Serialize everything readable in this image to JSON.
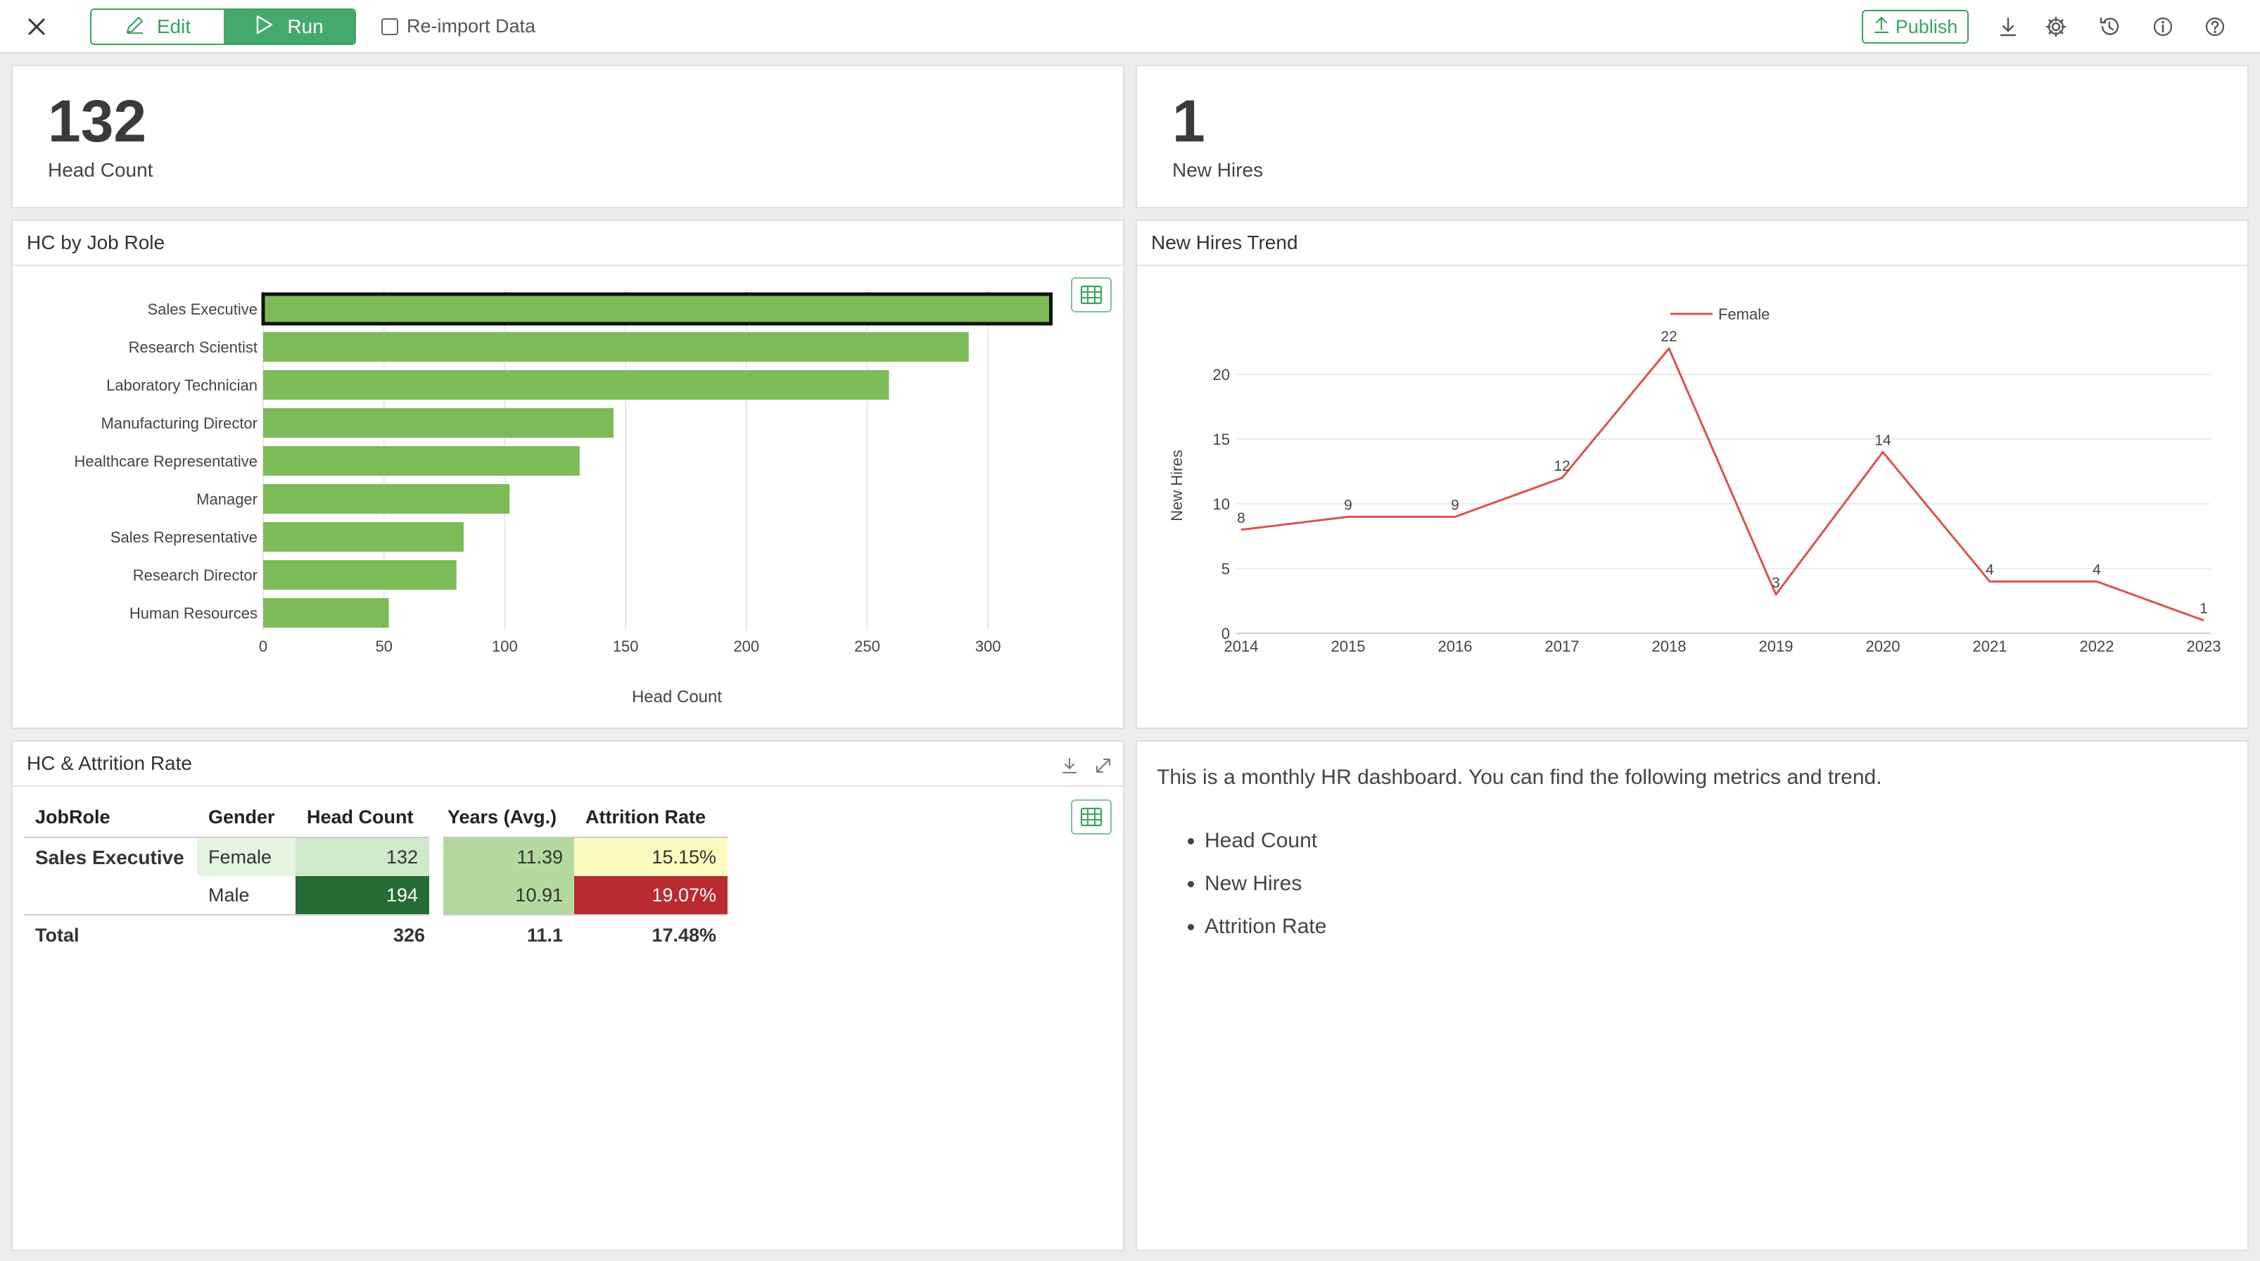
{
  "toolbar": {
    "edit_label": "Edit",
    "run_label": "Run",
    "reimport_label": "Re-import Data",
    "publish_label": "Publish"
  },
  "kpis": [
    {
      "value": "132",
      "label": "Head Count"
    },
    {
      "value": "1",
      "label": "New Hires"
    }
  ],
  "panels": {
    "bar_title": "HC by Job Role",
    "line_title": "New Hires Trend",
    "pivot_title": "HC & Attrition Rate"
  },
  "colors": {
    "accent": "#3aa35e",
    "bar": "#7dbb57",
    "line": "#d9534f"
  },
  "chart_data": [
    {
      "type": "bar",
      "orientation": "horizontal",
      "categories": [
        "Sales Executive",
        "Research Scientist",
        "Laboratory Technician",
        "Manufacturing Director",
        "Healthcare Representative",
        "Manager",
        "Sales Representative",
        "Research Director",
        "Human Resources"
      ],
      "values": [
        326,
        292,
        259,
        145,
        131,
        102,
        83,
        80,
        52
      ],
      "xlabel": "Head Count",
      "xlim": [
        0,
        340
      ],
      "xticks": [
        0,
        50,
        100,
        150,
        200,
        250,
        300
      ],
      "highlighted": "Sales Executive",
      "grid": true
    },
    {
      "type": "line",
      "x": [
        2014,
        2015,
        2016,
        2017,
        2018,
        2019,
        2020,
        2021,
        2022,
        2023
      ],
      "series": [
        {
          "name": "Female",
          "values": [
            8,
            9,
            9,
            12,
            22,
            3,
            14,
            4,
            4,
            1
          ]
        }
      ],
      "ylabel": "New Hires",
      "ylim": [
        0,
        24
      ],
      "yticks": [
        0,
        5,
        10,
        15,
        20
      ],
      "legend": "top-center",
      "grid": true
    }
  ],
  "pivot": {
    "headers": [
      "JobRole",
      "Gender",
      "Head Count",
      "Years (Avg.)",
      "Attrition Rate"
    ],
    "job_role": "Sales Executive",
    "rows": [
      {
        "gender": "Female",
        "head_count": "132",
        "years": "11.39",
        "attrition": "15.15%"
      },
      {
        "gender": "Male",
        "head_count": "194",
        "years": "10.91",
        "attrition": "19.07%"
      }
    ],
    "total": {
      "label": "Total",
      "head_count": "326",
      "years": "11.1",
      "attrition": "17.48%"
    }
  },
  "notes": {
    "intro": "This is a monthly HR dashboard. You can find the following metrics and trend.",
    "items": [
      "Head Count",
      "New Hires",
      "Attrition Rate"
    ]
  }
}
